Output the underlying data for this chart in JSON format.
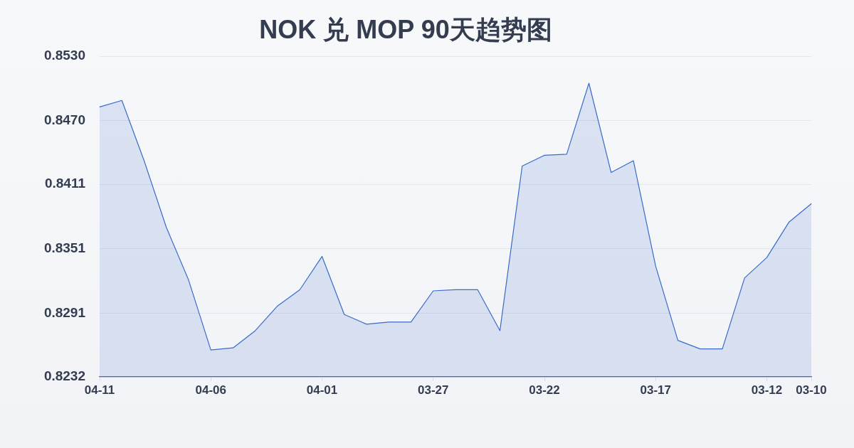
{
  "chart_data": {
    "type": "area",
    "title": "NOK 兑 MOP 90天趋势图",
    "categories": [
      "04-11",
      null,
      null,
      null,
      null,
      "04-06",
      null,
      null,
      null,
      null,
      "04-01",
      null,
      null,
      null,
      null,
      "03-27",
      null,
      null,
      null,
      null,
      "03-22",
      null,
      null,
      null,
      null,
      "03-17",
      null,
      null,
      null,
      null,
      "03-12",
      null,
      "03-10"
    ],
    "series": [
      {
        "color": "#3a6bc8",
        "values": [
          0.8483,
          0.8489,
          0.8433,
          0.8371,
          0.8322,
          0.8257,
          0.8259,
          0.8275,
          0.8298,
          0.8313,
          0.8344,
          0.829,
          0.8281,
          0.8283,
          0.8283,
          0.8312,
          0.8313,
          0.8313,
          0.8275,
          0.8428,
          0.8438,
          0.8439,
          0.8505,
          0.8422,
          0.8433,
          0.8335,
          0.8266,
          0.8258,
          0.8258,
          0.8324,
          0.8343,
          0.8376,
          0.8393
        ]
      }
    ],
    "ylim": [
      0.8232,
      0.853
    ],
    "yticks": [
      0.8232,
      0.8291,
      0.8351,
      0.8411,
      {
        "value": 0.847,
        "label": "0.8470"
      },
      {
        "value": 0.853,
        "label": "0.8530"
      }
    ],
    "grid": "y",
    "marker": "none"
  }
}
